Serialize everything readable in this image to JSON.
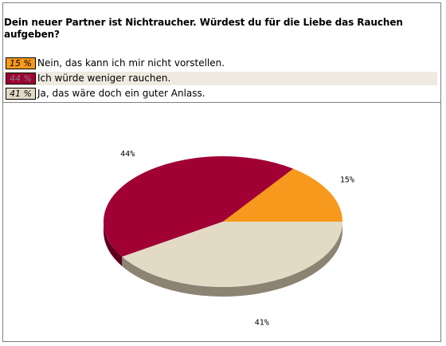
{
  "poll": {
    "question": "Dein neuer Partner ist Nichtraucher. Würdest du für die Liebe das Rauchen aufgeben?",
    "options": [
      {
        "percent_label": "15 %",
        "label": "Nein, das kann ich mir nicht vorstellen."
      },
      {
        "percent_label": "44 %",
        "label": "Ich würde weniger rauchen."
      },
      {
        "percent_label": "41 %",
        "label": "Ja, das wäre doch ein guter Anlass."
      }
    ]
  },
  "colors": {
    "orange": "#f7991c",
    "crimson": "#a10034",
    "beige": "#e3dac6",
    "crimson_side": "#5e001e",
    "beige_side": "#8c8373"
  },
  "chart_data": {
    "type": "pie",
    "categories": [
      "Nein, das kann ich mir nicht vorstellen.",
      "Ich würde weniger rauchen.",
      "Ja, das wäre doch ein guter Anlass."
    ],
    "values": [
      15,
      44,
      41
    ],
    "slice_labels": [
      "15%",
      "44%",
      "41%"
    ],
    "title": ""
  }
}
